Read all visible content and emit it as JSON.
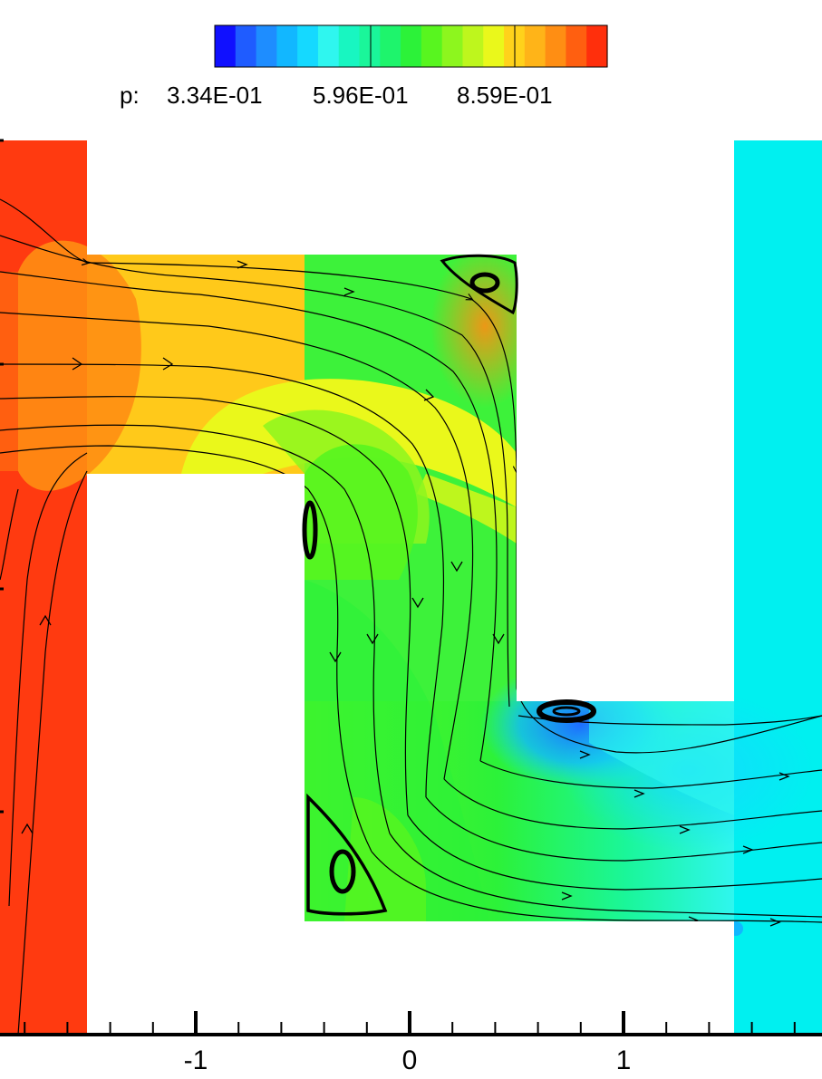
{
  "chart_data": {
    "type": "heatmap",
    "variable": "p",
    "colorbar": {
      "label": "p:",
      "tick_labels": [
        "3.34E-01",
        "5.96E-01",
        "8.59E-01"
      ],
      "colors": [
        "#1010ff",
        "#1f5cff",
        "#1e8dff",
        "#12b7ff",
        "#15d9ff",
        "#2ff6ef",
        "#18f6c1",
        "#1af69a",
        "#1ef46c",
        "#2cf239",
        "#58f51f",
        "#8df61e",
        "#bef61d",
        "#eaf81b",
        "#ffd21b",
        "#ffb418",
        "#ff8e13",
        "#ff5f10",
        "#ff2f0c"
      ],
      "orientation": "horizontal",
      "placement": "top"
    },
    "x_axis": {
      "ticks": [
        -1,
        0,
        1
      ],
      "tick_labels": [
        "-1",
        "0",
        "1"
      ],
      "minor_tick_step": 0.2,
      "range": [
        -1.92,
        1.92
      ]
    },
    "domain_colors": {
      "inlet_left": "#ff3a10",
      "outlet_right": "#00f0f0",
      "upper_channel": "#ffc91a",
      "middle_channel": "#3df23a",
      "lower_channel": "#1ef0a8",
      "low_pressure_corner": "#1e8dff"
    },
    "streamline_color": "#000000"
  }
}
